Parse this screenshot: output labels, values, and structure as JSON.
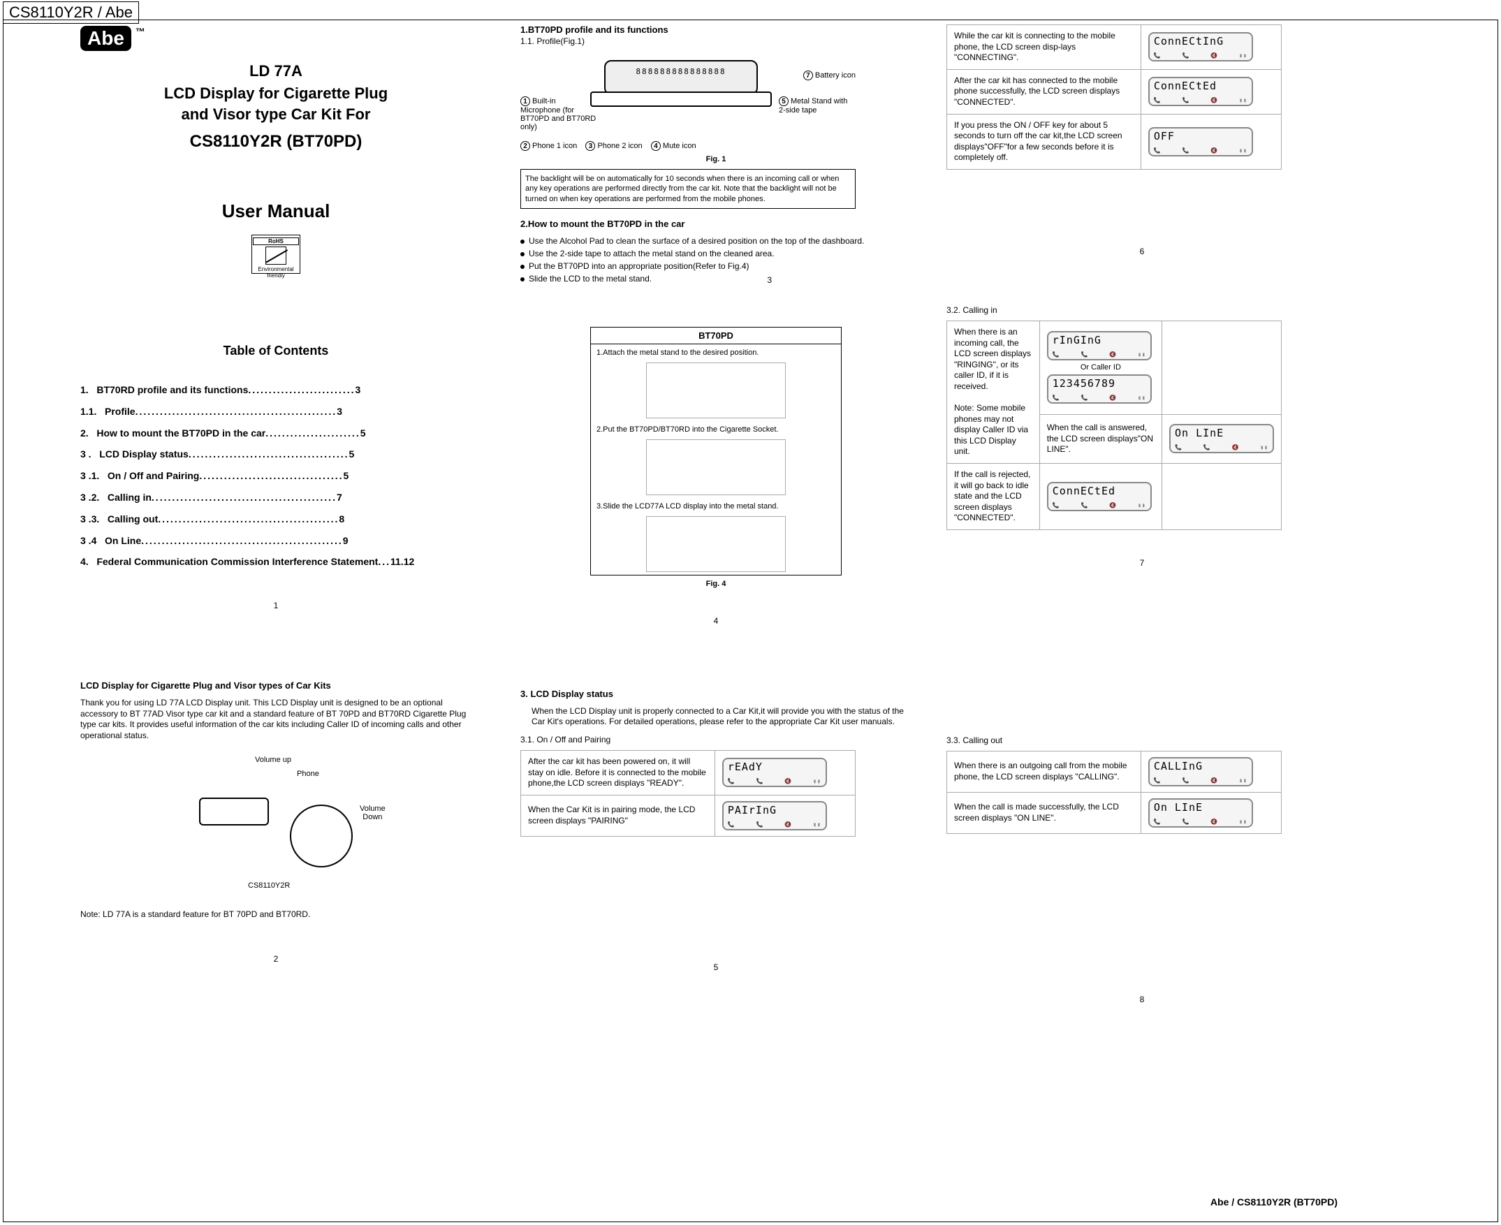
{
  "tab": "CS8110Y2R / Abe",
  "logo": {
    "text": "Abe",
    "tm": "™"
  },
  "title": {
    "line1": "LD 77A",
    "line2": "LCD Display for Cigarette Plug",
    "line3": "and Visor type Car Kit For",
    "model": "CS8110Y2R (BT70PD)"
  },
  "user_manual": "User Manual",
  "rohs": {
    "top": "RoHS",
    "bottom1": "Environmental",
    "bottom2": "friendly"
  },
  "toc": {
    "heading": "Table of Contents",
    "items": [
      {
        "n": "1.",
        "t": "BT70RD profile and its functions",
        "p": "3"
      },
      {
        "n": "1.1.",
        "t": "Profile",
        "p": "3"
      },
      {
        "n": "2.",
        "t": "How to mount the BT70PD  in the car",
        "p": "5"
      },
      {
        "n": "3 .",
        "t": "LCD Display status",
        "p": "5"
      },
      {
        "n": "3 .1.",
        "t": "On / Off and Pairing",
        "p": "5"
      },
      {
        "n": "3 .2.",
        "t": "Calling in",
        "p": "7"
      },
      {
        "n": "3 .3.",
        "t": "Calling out",
        "p": "8"
      },
      {
        "n": "3 .4",
        "t": "On Line",
        "p": "9"
      },
      {
        "n": "4.",
        "t": "Federal Communication Commission Interference Statement",
        "p": "11.12"
      }
    ]
  },
  "page_numbers": {
    "p1": "1",
    "p2": "2",
    "p3": "3",
    "p4": "4",
    "p5": "5",
    "p6": "6",
    "p7": "7",
    "p8": "8"
  },
  "intro": {
    "heading": "LCD Display for Cigarette Plug and Visor types of Car Kits",
    "para": "Thank you for using LD 77A LCD Display unit. This LCD Display unit is designed to be an optional  accessory  to BT 77AD Visor type car kit  and a  standard feature of BT 70PD and  BT70RD Cigarette Plug type car kits. It provides  useful  information of the car kits including Caller ID of incoming calls and other operational status.",
    "labels": {
      "vu": "Volume up",
      "ph": "Phone",
      "vd": "Volume Down",
      "model": "CS8110Y2R"
    },
    "note": "Note: LD 77A is a standard feature for BT 70PD and BT70RD."
  },
  "sec1": {
    "heading": "1.BT70PD profile and its functions",
    "sub": "1.1. Profile(Fig.1)",
    "callouts": {
      "c1": "Built-in Microphone (for BT70PD and BT70RD only)",
      "c2": "Phone 1 icon",
      "c3": "Phone 2 icon",
      "c4": "Mute icon",
      "c5": "Metal Stand with 2-side tape",
      "c6": "Battery icon"
    },
    "lcd_digits": "888888888888888",
    "figcap": "Fig. 1",
    "backlight": "The backlight will be on automatically for  10 seconds  when there is an incoming  call or when any key operations are  performed directly from the car kit.  Note that the backlight will not be turned on when key operations are performed from the mobile phones."
  },
  "sec2": {
    "heading": "2.How to mount the BT70PD  in the car",
    "b1": "Use the  Alcohol Pad to  clean the surface of a  desired position  on the top of the dashboard.",
    "b2": "Use the 2-side tape to  attach  the metal  stand on the cleaned area.",
    "b3": "Put the  BT70PD into an appropriate position(Refer to Fig.4)",
    "b4": "Slide the LCD to the metal stand."
  },
  "fig4": {
    "title": "BT70PD",
    "s1": "1.Attach the metal stand to the desired position.",
    "s2": "2.Put the BT70PD/BT70RD into the Cigarette Socket.",
    "s3": "3.Slide the LCD77A LCD display into the metal stand.",
    "figcap": "Fig. 4"
  },
  "sec3": {
    "heading": "3. LCD Display status",
    "intro": "When the LCD Display unit is properly connected to a Car Kit,it will provide you with   the  status of  the Car Kit's  operations.  For  detailed  operations, please refer to the appropriate Car Kit user manuals.",
    "s31h": "3.1. On / Off and Pairing",
    "rows31": [
      {
        "txt": "After the car kit has been  powered on, it will  stay on idle.  Before  it  is connected to the mobile phone,the LCD screen displays \"READY\".",
        "lcd": "rEAdY"
      },
      {
        "txt": "When the Car Kit is in pairing mode, the LCD screen displays \"PAIRING\"",
        "lcd": "PAIrInG"
      }
    ],
    "s32h": "3.2. Calling in",
    "rows32a": [
      {
        "txt": "When there is an incoming call, the LCD screen displays \"RINGING\", or its  caller ID, if it is received.",
        "lcd": "rInGInG"
      }
    ],
    "orcaller": "Or Caller ID",
    "callerid_lcd": "123456789",
    "rows32b_note": "Note: Some  mobile  phones  may not display Caller ID via this LCD Display unit.",
    "rows32c": [
      {
        "txt": "When  the call is  answered,  the  LCD screen displays\"ON LINE\".",
        "lcd": "On LInE"
      },
      {
        "txt": "If the call  is rejected, it will  go back to idle state and the LCD screen displays \"CONNECTED\".",
        "lcd": "ConnECtEd"
      }
    ],
    "s33h": "3.3. Calling out",
    "rows33": [
      {
        "txt": "When there is an outgoing call from the mobile phone, the LCD screen displays \"CALLING\".",
        "lcd": "CALLInG"
      },
      {
        "txt": "When the call is made successfully, the LCD screen displays \"ON LINE\".",
        "lcd": "On LInE"
      }
    ]
  },
  "top_right_rows": [
    {
      "txt": "While the car kit is connecting to the mobile phone, the LCD screen disp-lays \"CONNECTING\".",
      "lcd": "ConnECtInG"
    },
    {
      "txt": "After the car kit has connected to the mobile phone  successfully,  the LCD screen displays \"CONNECTED\".",
      "lcd": "ConnECtEd"
    },
    {
      "txt": "If you press the ON / OFF key for about 5 seconds to turn off the car kit,the LCD screen displays\"OFF\"for a few seconds before it is completely off.",
      "lcd": "OFF"
    }
  ],
  "footer": "Abe / CS8110Y2R (BT70PD)",
  "colors": {
    "border": "#000000",
    "lcd_bg": "#f5f5f5",
    "grey": "#aaaaaa"
  }
}
